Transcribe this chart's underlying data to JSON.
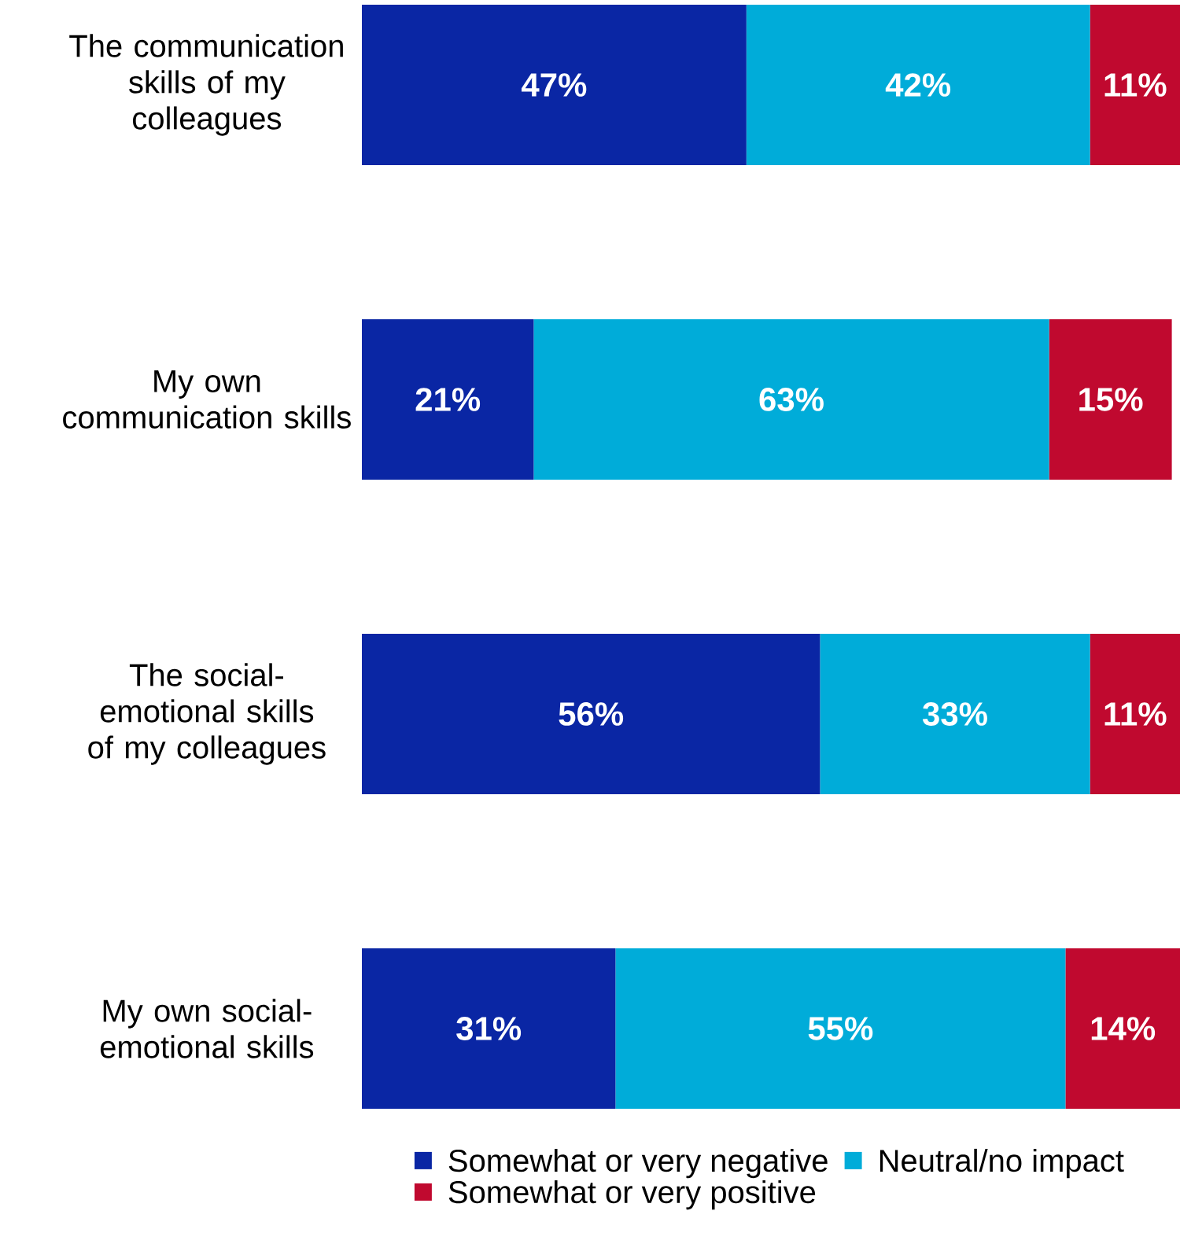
{
  "chart_data": {
    "type": "bar",
    "orientation": "horizontal",
    "stacked": true,
    "tick_labels": "y",
    "categories": [
      "The communication skills of my colleagues",
      "My own communication skills",
      "The social-emotional skills of my colleagues",
      "My own social-emotional skills"
    ],
    "series": [
      {
        "name": "Somewhat or very negative",
        "color": "#0a26a4",
        "values": [
          47,
          21,
          56,
          31
        ],
        "value_labels": [
          "47%",
          "21%",
          "56%",
          "31%"
        ]
      },
      {
        "name": "Neutral/no impact",
        "color": "#00acd9",
        "values": [
          42,
          63,
          33,
          55
        ],
        "value_labels": [
          "42%",
          "63%",
          "33%",
          "55%"
        ]
      },
      {
        "name": "Somewhat or very positive",
        "color": "#c0092f",
        "values": [
          11,
          15,
          11,
          14
        ],
        "value_labels": [
          "11%",
          "15%",
          "11%",
          "14%"
        ]
      }
    ],
    "legend": "bottom"
  }
}
